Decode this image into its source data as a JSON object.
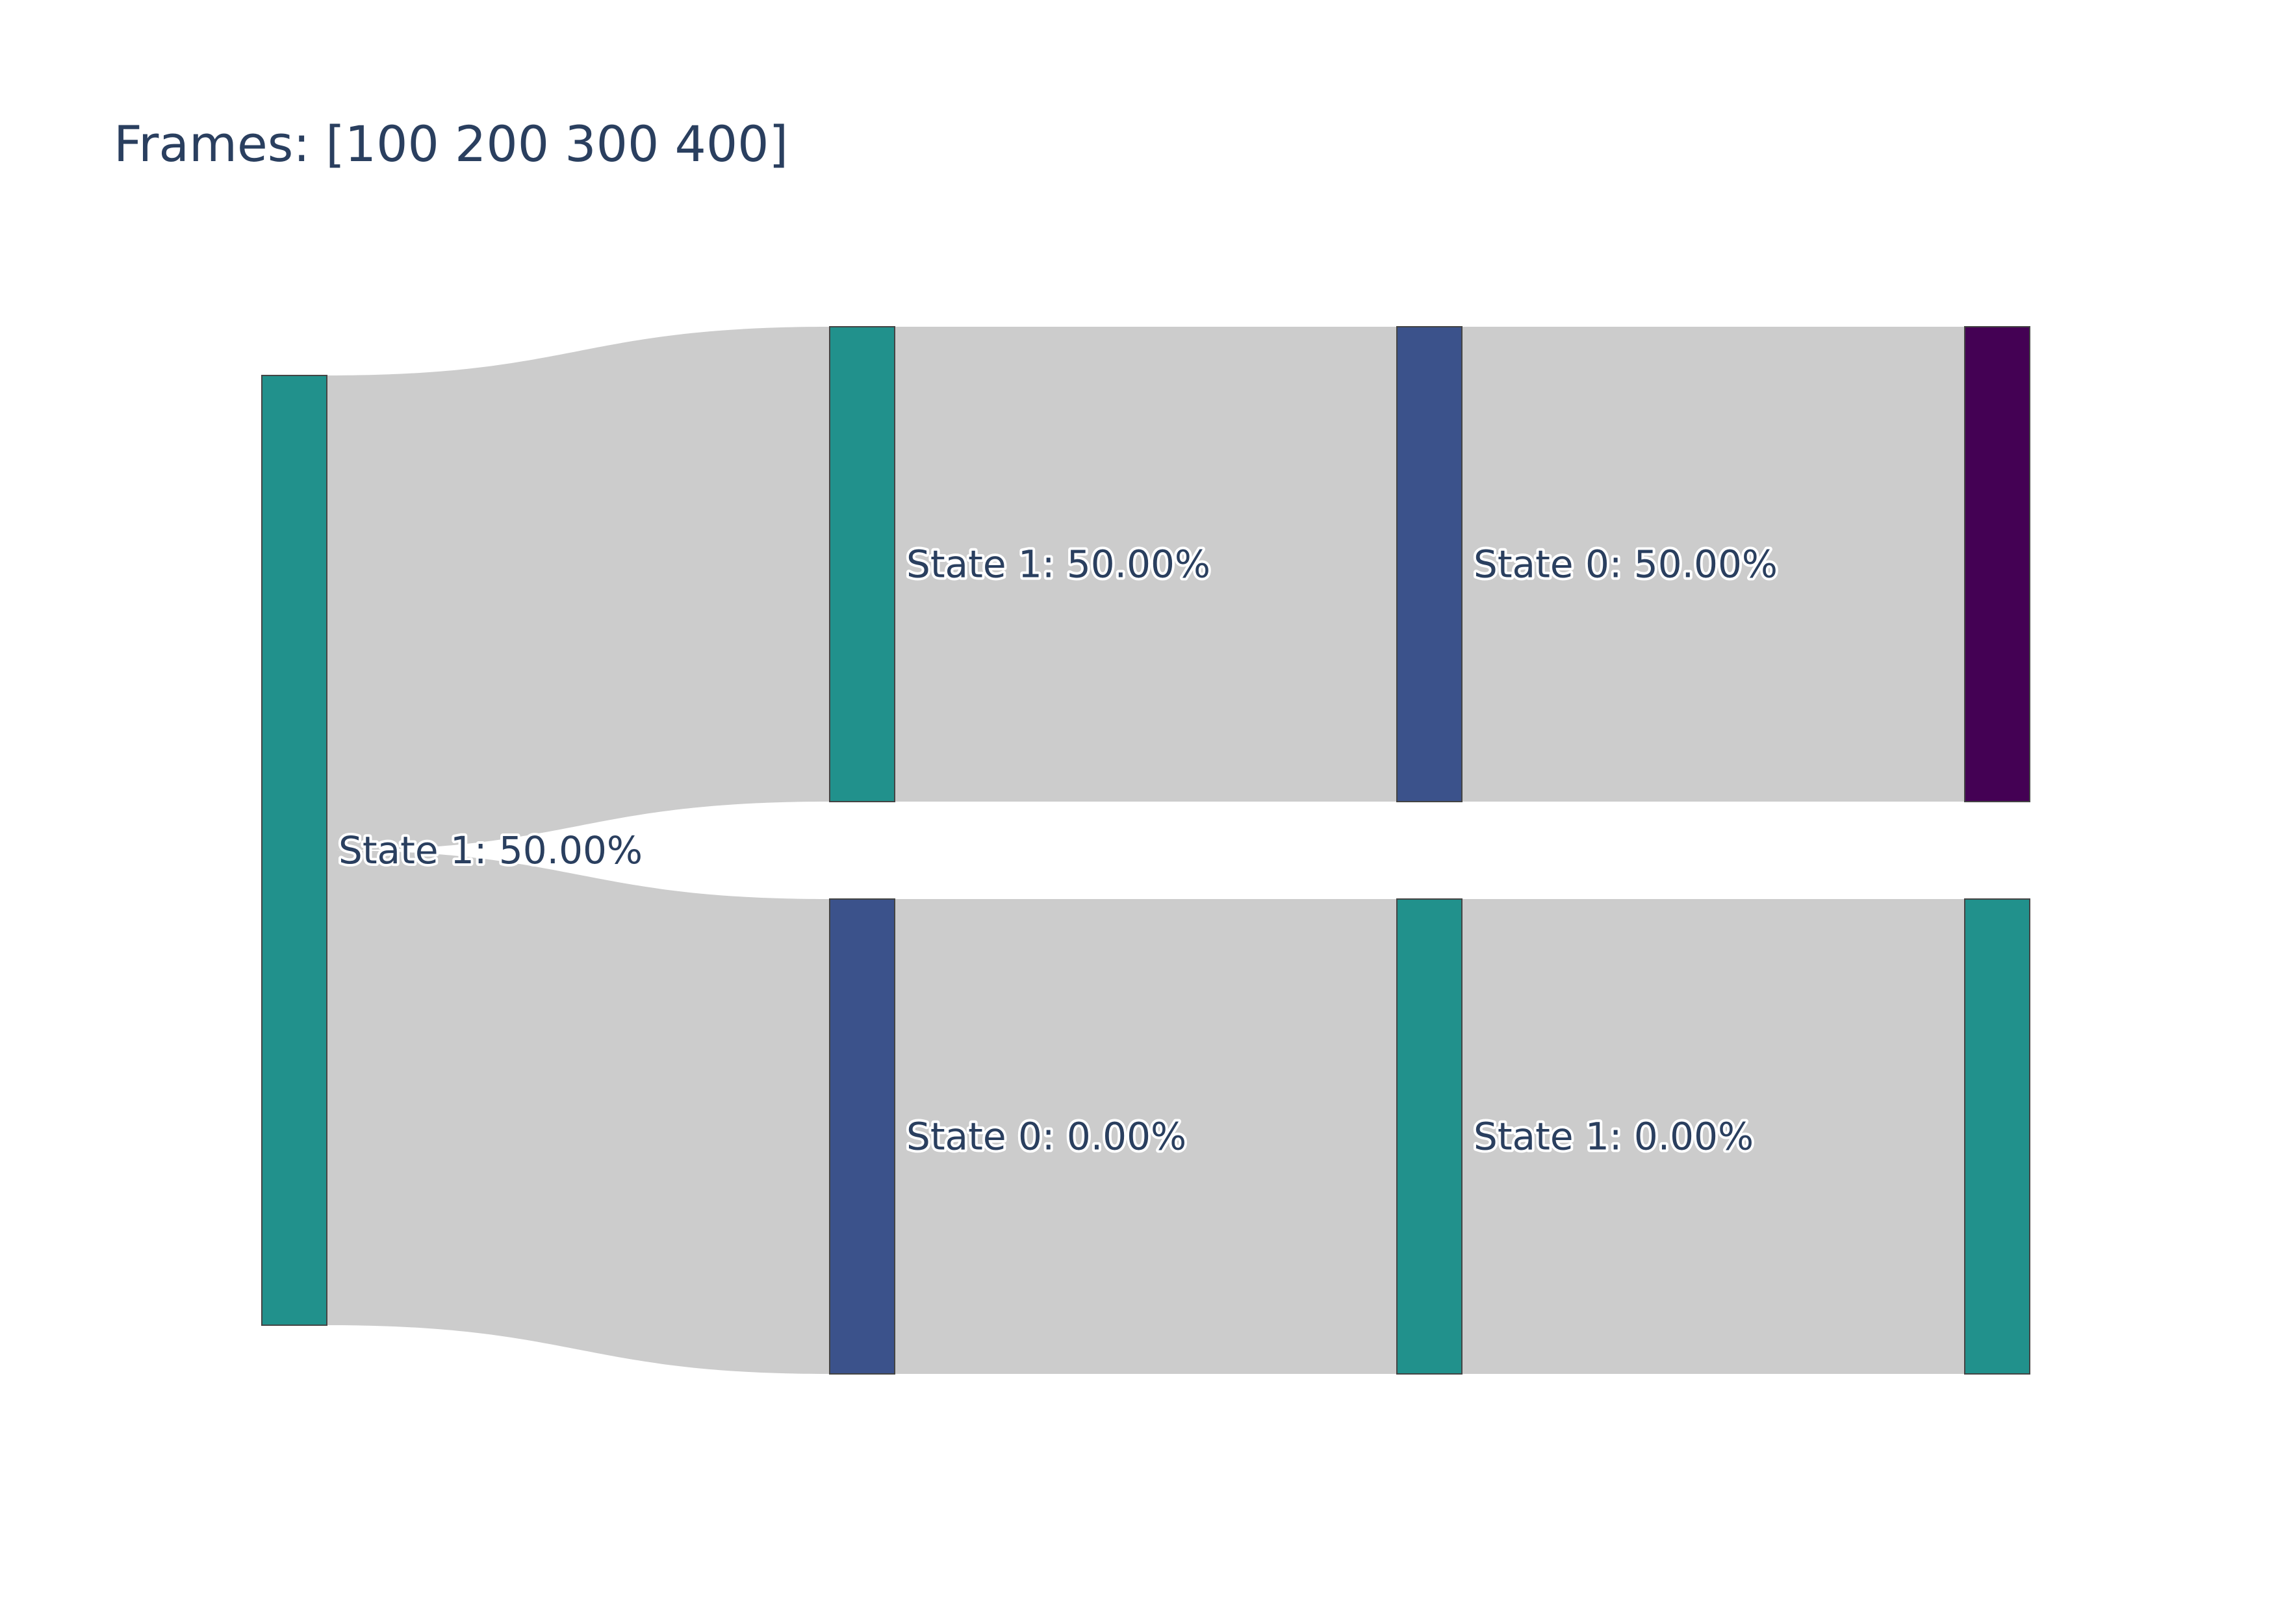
{
  "chart_data": {
    "type": "sankey",
    "title": "Frames: [100 200 300 400]",
    "columns": [
      "100",
      "200",
      "300",
      "400"
    ],
    "nodes": [
      {
        "id": "n0",
        "column": 0,
        "label": "State 1: 50.00%",
        "value": 2,
        "color": "#21918c"
      },
      {
        "id": "n1",
        "column": 1,
        "label": "State 1: 50.00%",
        "value": 1,
        "color": "#21918c"
      },
      {
        "id": "n2",
        "column": 1,
        "label": "State 0: 0.00%",
        "value": 1,
        "color": "#3b528b"
      },
      {
        "id": "n3",
        "column": 2,
        "label": "State 0: 50.00%",
        "value": 1,
        "color": "#3b528b"
      },
      {
        "id": "n4",
        "column": 2,
        "label": "State 1: 0.00%",
        "value": 1,
        "color": "#21918c"
      },
      {
        "id": "n5",
        "column": 3,
        "label": "",
        "value": 1,
        "color": "#440154"
      },
      {
        "id": "n6",
        "column": 3,
        "label": "",
        "value": 1,
        "color": "#21918c"
      }
    ],
    "links": [
      {
        "source": "n0",
        "target": "n1",
        "value": 1
      },
      {
        "source": "n0",
        "target": "n2",
        "value": 1
      },
      {
        "source": "n1",
        "target": "n3",
        "value": 1
      },
      {
        "source": "n2",
        "target": "n4",
        "value": 1
      },
      {
        "source": "n3",
        "target": "n5",
        "value": 1
      },
      {
        "source": "n4",
        "target": "n6",
        "value": 1
      }
    ],
    "link_color": "#cccccc",
    "text_color": "#2a3f5f"
  }
}
